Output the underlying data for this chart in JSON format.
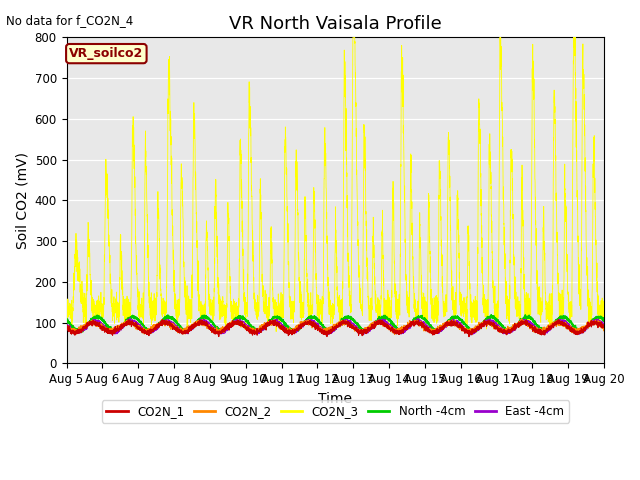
{
  "title": "VR North Vaisala Profile",
  "subtitle": "No data for f_CO2N_4",
  "ylabel": "Soil CO2 (mV)",
  "xlabel": "Time",
  "ylim": [
    0,
    800
  ],
  "background_color": "#ffffff",
  "plot_bg_color": "#e8e8e8",
  "legend_label": "VR_soilco2",
  "series_labels": [
    "CO2N_1",
    "CO2N_2",
    "CO2N_3",
    "North -4cm",
    "East -4cm"
  ],
  "series_colors": [
    "#cc0000",
    "#ff8800",
    "#ffff00",
    "#00cc00",
    "#9900cc"
  ],
  "x_tick_labels": [
    "Aug 5",
    "Aug 6",
    "Aug 7",
    "Aug 8",
    "Aug 9",
    "Aug 10",
    "Aug 11",
    "Aug 12",
    "Aug 13",
    "Aug 14",
    "Aug 15",
    "Aug 16",
    "Aug 17",
    "Aug 18",
    "Aug 19",
    "Aug 20"
  ],
  "title_fontsize": 13,
  "axis_fontsize": 10,
  "tick_fontsize": 8.5
}
